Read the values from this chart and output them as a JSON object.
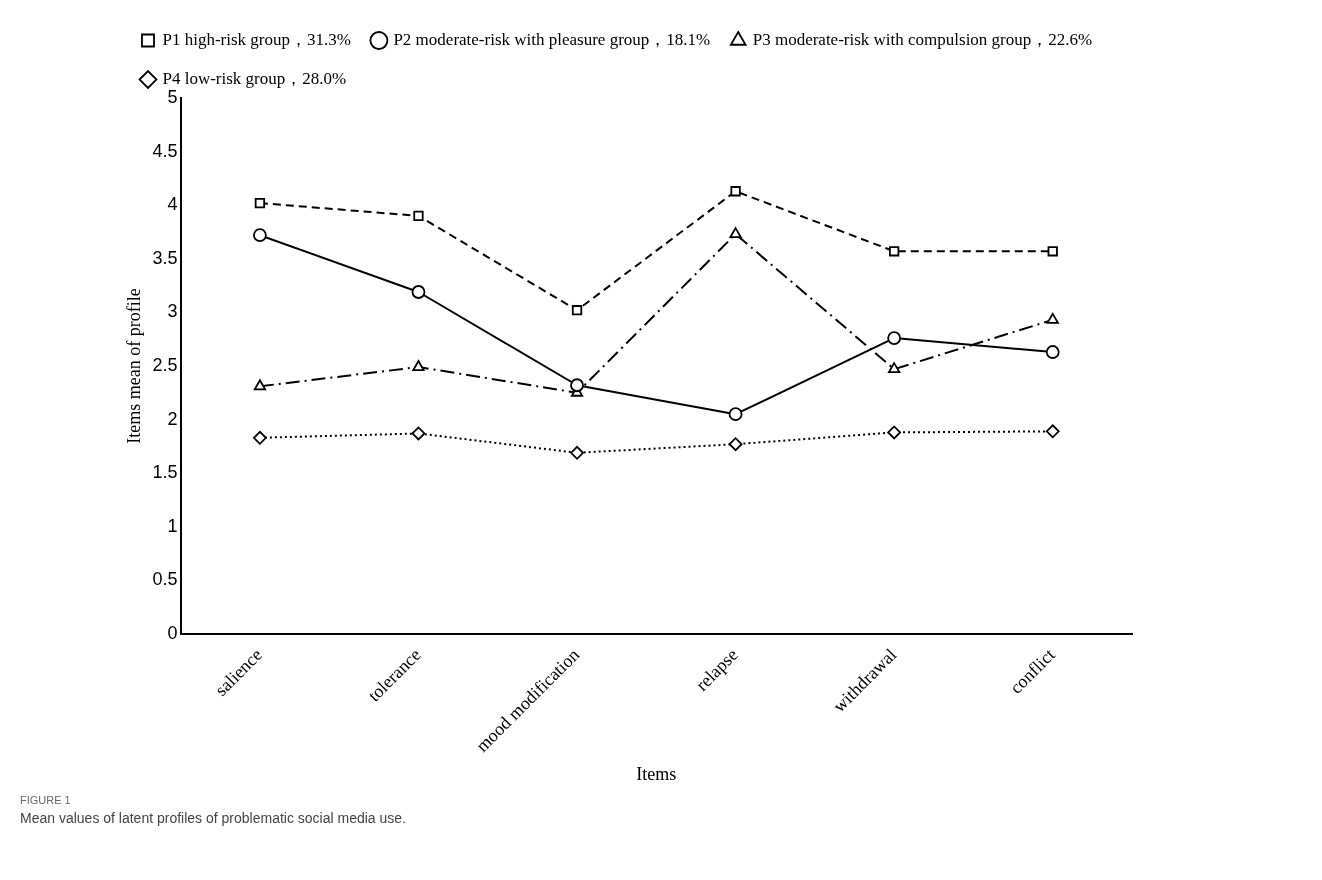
{
  "chart_data": {
    "type": "line",
    "xlabel": "Items",
    "ylabel": "Items mean of profile",
    "categories": [
      "salience",
      "tolerance",
      "mood modification",
      "relapse",
      "withdrawal",
      "conflict"
    ],
    "series": [
      {
        "name": "P1 high-risk group，31.3%",
        "color": "#000000",
        "marker": "square",
        "line_style": "dashed",
        "values": [
          4.02,
          3.9,
          3.02,
          4.13,
          3.57,
          3.57
        ]
      },
      {
        "name": "P2 moderate-risk with pleasure group，18.1%",
        "color": "#000000",
        "marker": "circle",
        "line_style": "solid",
        "values": [
          3.72,
          3.19,
          2.32,
          2.05,
          2.76,
          2.63
        ]
      },
      {
        "name": "P3 moderate-risk with compulsion group，22.6%",
        "color": "#000000",
        "marker": "triangle",
        "line_style": "dashdot",
        "values": [
          2.31,
          2.49,
          2.25,
          3.73,
          2.47,
          2.93
        ]
      },
      {
        "name": "P4 low-risk group，28.0%",
        "color": "#000000",
        "marker": "diamond",
        "line_style": "dotted",
        "values": [
          1.83,
          1.87,
          1.69,
          1.77,
          1.88,
          1.89
        ]
      }
    ],
    "ylim": [
      0,
      5
    ],
    "yticks": [
      0,
      0.5,
      1,
      1.5,
      2,
      2.5,
      3,
      3.5,
      4,
      4.5,
      5
    ],
    "grid": false,
    "legend": "top",
    "annotations": [
      "FIGURE 1",
      "Mean values of latent profiles of problematic social media use."
    ]
  }
}
